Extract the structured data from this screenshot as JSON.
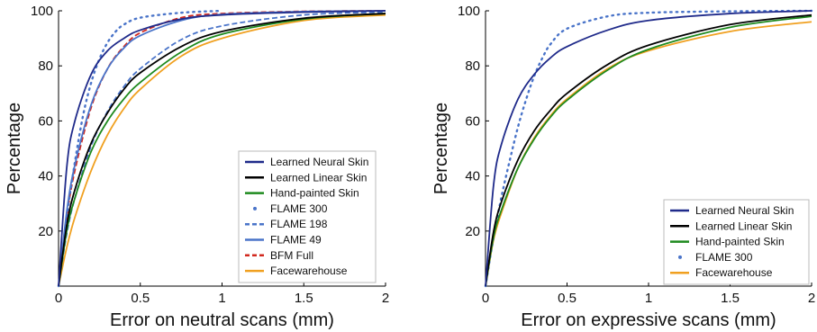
{
  "chart_data": [
    {
      "type": "line",
      "xlabel": "Error on neutral scans (mm)",
      "ylabel": "Percentage",
      "xlim": [
        0,
        2
      ],
      "ylim": [
        0,
        100
      ],
      "xticks": [
        "0",
        "0.5",
        "1",
        "1.5",
        "2"
      ],
      "yticks": [
        "20",
        "40",
        "60",
        "80",
        "100"
      ],
      "grid": false,
      "legend_position": "bottom-right",
      "series": [
        {
          "name": "Learned Neural Skin",
          "color": "#1f2a8a",
          "style": "solid",
          "x": [
            0,
            0.05,
            0.1,
            0.2,
            0.3,
            0.4,
            0.5,
            0.75,
            1,
            1.5,
            2
          ],
          "y": [
            0,
            43,
            60,
            77,
            85.5,
            90,
            93,
            97,
            98.5,
            99.5,
            100
          ]
        },
        {
          "name": "Learned Linear Skin",
          "color": "#000000",
          "style": "solid",
          "x": [
            0,
            0.05,
            0.1,
            0.2,
            0.3,
            0.4,
            0.5,
            0.75,
            1,
            1.5,
            2
          ],
          "y": [
            0,
            22,
            35,
            52,
            63,
            71.5,
            77.5,
            87,
            92.5,
            97.3,
            99
          ]
        },
        {
          "name": "Hand-painted Skin",
          "color": "#1e8a1e",
          "style": "solid",
          "x": [
            0,
            0.05,
            0.1,
            0.2,
            0.3,
            0.4,
            0.5,
            0.75,
            1,
            1.5,
            2
          ],
          "y": [
            0,
            20,
            32,
            49,
            60,
            68,
            74,
            85,
            91.5,
            97,
            99
          ]
        },
        {
          "name": "FLAME 300",
          "color": "#4a74c9",
          "style": "dotted",
          "x": [
            0,
            0.05,
            0.1,
            0.15,
            0.2,
            0.25,
            0.3,
            0.35,
            0.4,
            0.5,
            0.75,
            1
          ],
          "y": [
            0,
            25,
            45,
            62,
            74,
            82.5,
            88.5,
            92.5,
            95,
            97.5,
            99.3,
            100
          ]
        },
        {
          "name": "FLAME 198",
          "color": "#4a74c9",
          "style": "dashed",
          "x": [
            0,
            0.05,
            0.1,
            0.2,
            0.3,
            0.4,
            0.5,
            0.75,
            1,
            1.5,
            2
          ],
          "y": [
            0,
            19,
            32,
            51,
            63.5,
            72.5,
            79,
            89.5,
            94.5,
            98.5,
            99.5
          ]
        },
        {
          "name": "FLAME 49",
          "color": "#4a74c9",
          "style": "solid",
          "x": [
            0,
            0.05,
            0.1,
            0.2,
            0.3,
            0.4,
            0.5,
            0.75,
            1,
            1.5,
            2
          ],
          "y": [
            0,
            27,
            44,
            66,
            79,
            86.5,
            91,
            96.5,
            98.7,
            99.7,
            100
          ]
        },
        {
          "name": "BFM Full",
          "color": "#d2281e",
          "style": "dashed",
          "x": [
            0,
            0.05,
            0.1,
            0.2,
            0.3,
            0.4,
            0.5,
            0.75,
            1,
            1.5,
            2
          ],
          "y": [
            0,
            25,
            42,
            65,
            79,
            87,
            92,
            97.5,
            99,
            99.8,
            100
          ]
        },
        {
          "name": "Facewarehouse",
          "color": "#f0a020",
          "style": "solid",
          "x": [
            0,
            0.05,
            0.1,
            0.2,
            0.3,
            0.4,
            0.5,
            0.75,
            1,
            1.5,
            2
          ],
          "y": [
            0,
            14,
            25,
            42,
            55,
            64.5,
            71.5,
            83.5,
            90,
            96.5,
            98.5
          ]
        }
      ]
    },
    {
      "type": "line",
      "xlabel": "Error on expressive scans (mm)",
      "ylabel": "Percentage",
      "xlim": [
        0,
        2
      ],
      "ylim": [
        0,
        100
      ],
      "xticks": [
        "0",
        "0.5",
        "1",
        "1.5",
        "2"
      ],
      "yticks": [
        "20",
        "40",
        "60",
        "80",
        "100"
      ],
      "grid": false,
      "legend_position": "bottom-right",
      "series": [
        {
          "name": "Learned Neural Skin",
          "color": "#1f2a8a",
          "style": "solid",
          "x": [
            0,
            0.05,
            0.1,
            0.2,
            0.3,
            0.4,
            0.5,
            0.75,
            1,
            1.5,
            2
          ],
          "y": [
            0,
            37,
            52,
            68,
            77,
            83,
            87,
            93,
            96.5,
            99,
            100
          ]
        },
        {
          "name": "Learned Linear Skin",
          "color": "#000000",
          "style": "solid",
          "x": [
            0,
            0.05,
            0.1,
            0.2,
            0.3,
            0.4,
            0.5,
            0.75,
            1,
            1.5,
            2
          ],
          "y": [
            0,
            20,
            31,
            46,
            56.5,
            64,
            70,
            80.5,
            87.5,
            95,
            98.5
          ]
        },
        {
          "name": "Hand-painted Skin",
          "color": "#1e8a1e",
          "style": "solid",
          "x": [
            0,
            0.05,
            0.1,
            0.2,
            0.3,
            0.4,
            0.5,
            0.75,
            1,
            1.5,
            2
          ],
          "y": [
            0,
            18,
            28,
            43,
            53.5,
            61.5,
            67.5,
            78.5,
            86,
            94,
            98
          ]
        },
        {
          "name": "FLAME 300",
          "color": "#4a74c9",
          "style": "dotted",
          "x": [
            0,
            0.05,
            0.1,
            0.15,
            0.2,
            0.25,
            0.3,
            0.35,
            0.4,
            0.5,
            0.75,
            1,
            1.5,
            2
          ],
          "y": [
            0,
            18,
            33,
            46,
            58,
            68,
            76.5,
            83,
            88,
            93.5,
            98,
            99.3,
            99.8,
            100
          ]
        },
        {
          "name": "Facewarehouse",
          "color": "#f0a020",
          "style": "solid",
          "x": [
            0,
            0.05,
            0.1,
            0.2,
            0.3,
            0.4,
            0.5,
            0.75,
            1,
            1.5,
            2
          ],
          "y": [
            0,
            17,
            27,
            43,
            54,
            62,
            68,
            79,
            85.5,
            92.5,
            96
          ]
        }
      ]
    }
  ]
}
